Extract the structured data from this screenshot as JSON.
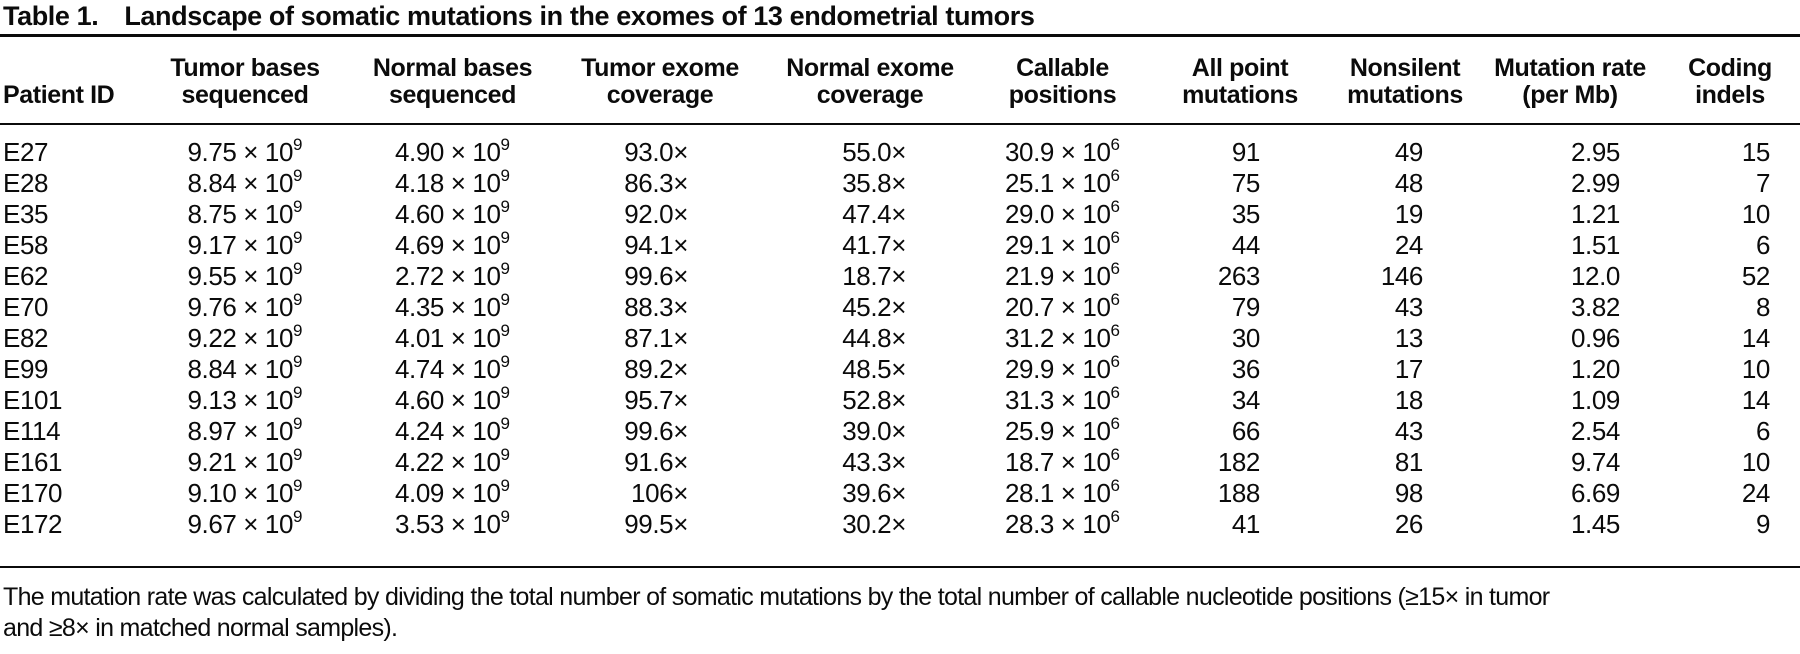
{
  "title": {
    "label": "Table 1.",
    "text": "Landscape of somatic mutations in the exomes of 13 endometrial tumors"
  },
  "table": {
    "columns": [
      {
        "key": "patient-id",
        "lines": [
          "Patient ID"
        ]
      },
      {
        "key": "tumor-bases",
        "lines": [
          "Tumor bases",
          "sequenced"
        ]
      },
      {
        "key": "normal-bases",
        "lines": [
          "Normal bases",
          "sequenced"
        ]
      },
      {
        "key": "tumor-coverage",
        "lines": [
          "Tumor exome",
          "coverage"
        ]
      },
      {
        "key": "normal-coverage",
        "lines": [
          "Normal exome",
          "coverage"
        ]
      },
      {
        "key": "callable",
        "lines": [
          "Callable",
          "positions"
        ]
      },
      {
        "key": "all-point",
        "lines": [
          "All point",
          "mutations"
        ]
      },
      {
        "key": "nonsilent",
        "lines": [
          "Nonsilent",
          "mutations"
        ]
      },
      {
        "key": "mutation-rate",
        "lines": [
          "Mutation rate",
          "(per Mb)"
        ]
      },
      {
        "key": "coding-indels",
        "lines": [
          "Coding",
          "indels"
        ]
      }
    ],
    "rows": [
      {
        "patient_id": "E27",
        "tumor_bases": {
          "coeff": "9.75 × 10",
          "exp": "9"
        },
        "normal_bases": {
          "coeff": "4.90 × 10",
          "exp": "9"
        },
        "tumor_coverage": "93.0×",
        "normal_coverage": "55.0×",
        "callable": {
          "coeff": "30.9 × 10",
          "exp": "6"
        },
        "all_point_mutations": "91",
        "nonsilent_mutations": "49",
        "mutation_rate": "2.95",
        "coding_indels": "15"
      },
      {
        "patient_id": "E28",
        "tumor_bases": {
          "coeff": "8.84 × 10",
          "exp": "9"
        },
        "normal_bases": {
          "coeff": "4.18 × 10",
          "exp": "9"
        },
        "tumor_coverage": "86.3×",
        "normal_coverage": "35.8×",
        "callable": {
          "coeff": "25.1 × 10",
          "exp": "6"
        },
        "all_point_mutations": "75",
        "nonsilent_mutations": "48",
        "mutation_rate": "2.99",
        "coding_indels": "7"
      },
      {
        "patient_id": "E35",
        "tumor_bases": {
          "coeff": "8.75 × 10",
          "exp": "9"
        },
        "normal_bases": {
          "coeff": "4.60 × 10",
          "exp": "9"
        },
        "tumor_coverage": "92.0×",
        "normal_coverage": "47.4×",
        "callable": {
          "coeff": "29.0 × 10",
          "exp": "6"
        },
        "all_point_mutations": "35",
        "nonsilent_mutations": "19",
        "mutation_rate": "1.21",
        "coding_indels": "10"
      },
      {
        "patient_id": "E58",
        "tumor_bases": {
          "coeff": "9.17 × 10",
          "exp": "9"
        },
        "normal_bases": {
          "coeff": "4.69 × 10",
          "exp": "9"
        },
        "tumor_coverage": "94.1×",
        "normal_coverage": "41.7×",
        "callable": {
          "coeff": "29.1 × 10",
          "exp": "6"
        },
        "all_point_mutations": "44",
        "nonsilent_mutations": "24",
        "mutation_rate": "1.51",
        "coding_indels": "6"
      },
      {
        "patient_id": "E62",
        "tumor_bases": {
          "coeff": "9.55 × 10",
          "exp": "9"
        },
        "normal_bases": {
          "coeff": "2.72 × 10",
          "exp": "9"
        },
        "tumor_coverage": "99.6×",
        "normal_coverage": "18.7×",
        "callable": {
          "coeff": "21.9 × 10",
          "exp": "6"
        },
        "all_point_mutations": "263",
        "nonsilent_mutations": "146",
        "mutation_rate": "12.0",
        "coding_indels": "52"
      },
      {
        "patient_id": "E70",
        "tumor_bases": {
          "coeff": "9.76 × 10",
          "exp": "9"
        },
        "normal_bases": {
          "coeff": "4.35 × 10",
          "exp": "9"
        },
        "tumor_coverage": "88.3×",
        "normal_coverage": "45.2×",
        "callable": {
          "coeff": "20.7 × 10",
          "exp": "6"
        },
        "all_point_mutations": "79",
        "nonsilent_mutations": "43",
        "mutation_rate": "3.82",
        "coding_indels": "8"
      },
      {
        "patient_id": "E82",
        "tumor_bases": {
          "coeff": "9.22 × 10",
          "exp": "9"
        },
        "normal_bases": {
          "coeff": "4.01 × 10",
          "exp": "9"
        },
        "tumor_coverage": "87.1×",
        "normal_coverage": "44.8×",
        "callable": {
          "coeff": "31.2 × 10",
          "exp": "6"
        },
        "all_point_mutations": "30",
        "nonsilent_mutations": "13",
        "mutation_rate": "0.96",
        "coding_indels": "14"
      },
      {
        "patient_id": "E99",
        "tumor_bases": {
          "coeff": "8.84 × 10",
          "exp": "9"
        },
        "normal_bases": {
          "coeff": "4.74 × 10",
          "exp": "9"
        },
        "tumor_coverage": "89.2×",
        "normal_coverage": "48.5×",
        "callable": {
          "coeff": "29.9 × 10",
          "exp": "6"
        },
        "all_point_mutations": "36",
        "nonsilent_mutations": "17",
        "mutation_rate": "1.20",
        "coding_indels": "10"
      },
      {
        "patient_id": "E101",
        "tumor_bases": {
          "coeff": "9.13 × 10",
          "exp": "9"
        },
        "normal_bases": {
          "coeff": "4.60 × 10",
          "exp": "9"
        },
        "tumor_coverage": "95.7×",
        "normal_coverage": "52.8×",
        "callable": {
          "coeff": "31.3 × 10",
          "exp": "6"
        },
        "all_point_mutations": "34",
        "nonsilent_mutations": "18",
        "mutation_rate": "1.09",
        "coding_indels": "14"
      },
      {
        "patient_id": "E114",
        "tumor_bases": {
          "coeff": "8.97 × 10",
          "exp": "9"
        },
        "normal_bases": {
          "coeff": "4.24 × 10",
          "exp": "9"
        },
        "tumor_coverage": "99.6×",
        "normal_coverage": "39.0×",
        "callable": {
          "coeff": "25.9 × 10",
          "exp": "6"
        },
        "all_point_mutations": "66",
        "nonsilent_mutations": "43",
        "mutation_rate": "2.54",
        "coding_indels": "6"
      },
      {
        "patient_id": "E161",
        "tumor_bases": {
          "coeff": "9.21 × 10",
          "exp": "9"
        },
        "normal_bases": {
          "coeff": "4.22 × 10",
          "exp": "9"
        },
        "tumor_coverage": "91.6×",
        "normal_coverage": "43.3×",
        "callable": {
          "coeff": "18.7 × 10",
          "exp": "6"
        },
        "all_point_mutations": "182",
        "nonsilent_mutations": "81",
        "mutation_rate": "9.74",
        "coding_indels": "10"
      },
      {
        "patient_id": "E170",
        "tumor_bases": {
          "coeff": "9.10 × 10",
          "exp": "9"
        },
        "normal_bases": {
          "coeff": "4.09 × 10",
          "exp": "9"
        },
        "tumor_coverage": "106×",
        "normal_coverage": "39.6×",
        "callable": {
          "coeff": "28.1 × 10",
          "exp": "6"
        },
        "all_point_mutations": "188",
        "nonsilent_mutations": "98",
        "mutation_rate": "6.69",
        "coding_indels": "24"
      },
      {
        "patient_id": "E172",
        "tumor_bases": {
          "coeff": "9.67 × 10",
          "exp": "9"
        },
        "normal_bases": {
          "coeff": "3.53 × 10",
          "exp": "9"
        },
        "tumor_coverage": "99.5×",
        "normal_coverage": "30.2×",
        "callable": {
          "coeff": "28.3 × 10",
          "exp": "6"
        },
        "all_point_mutations": "41",
        "nonsilent_mutations": "26",
        "mutation_rate": "1.45",
        "coding_indels": "9"
      }
    ]
  },
  "footnote": {
    "line1": "The mutation rate was calculated by dividing the total number of somatic mutations by the total number of callable nucleotide positions (≥15× in tumor",
    "line2": "and ≥8× in matched normal samples)."
  }
}
